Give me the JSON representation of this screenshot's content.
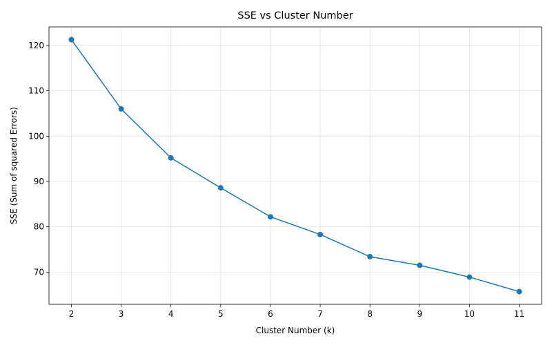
{
  "chart_data": {
    "type": "line",
    "title": "SSE vs Cluster Number",
    "xlabel": "Cluster Number (k)",
    "ylabel": "SSE (Sum of squared Errors)",
    "x": [
      2,
      3,
      4,
      5,
      6,
      7,
      8,
      9,
      10,
      11
    ],
    "series": [
      {
        "values": [
          121.3,
          106.0,
          95.2,
          88.6,
          82.2,
          78.3,
          73.4,
          71.5,
          68.9,
          65.7
        ],
        "color": "#1f77b4",
        "marker": "circle"
      }
    ],
    "xticks": [
      "2",
      "3",
      "4",
      "5",
      "6",
      "7",
      "8",
      "9",
      "10",
      "11"
    ],
    "yticks": [
      "70",
      "80",
      "90",
      "100",
      "110",
      "120"
    ],
    "xlim": [
      1.55,
      11.45
    ],
    "ylim": [
      62.9,
      124.1
    ],
    "grid": true,
    "legend": "none"
  }
}
